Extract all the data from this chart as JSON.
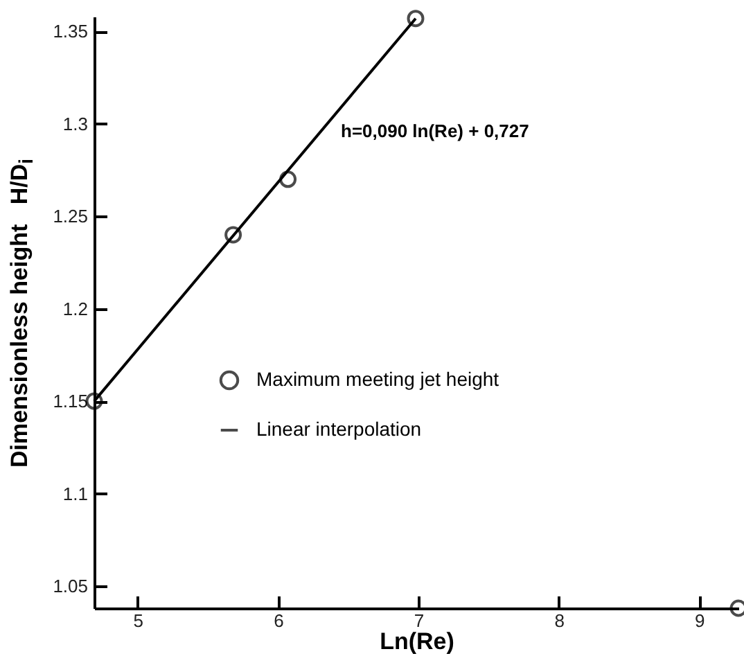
{
  "chart_data": {
    "type": "scatter",
    "xlabel": "Ln(Re)",
    "ylabel": "Dimensionless height   H/D$_{i}$",
    "xlim": [
      4.69,
      9.28
    ],
    "ylim": [
      1.038,
      1.358
    ],
    "xticks": [
      5,
      6,
      7,
      8,
      9
    ],
    "yticks": [
      1.05,
      1.1,
      1.15,
      1.2,
      1.25,
      1.3,
      1.35
    ],
    "grid": false,
    "legend": "left",
    "series": [
      {
        "name": "Maximum meeting jet height",
        "color": "#000000",
        "marker": "circle",
        "x": [
          4.69,
          5.68,
          6.07,
          6.98,
          9.28
        ],
        "values": [
          1.15,
          1.24,
          1.27,
          1.357,
          1.038
        ]
      },
      {
        "name": "Linear interpolation",
        "type": "line",
        "color": "#000000",
        "line_style": "solid",
        "x": [
          4.69,
          6.98
        ],
        "values": [
          1.15,
          1.357
        ]
      }
    ],
    "annotations": [
      "h=0,090 ln(Re) + 0,727"
    ]
  }
}
